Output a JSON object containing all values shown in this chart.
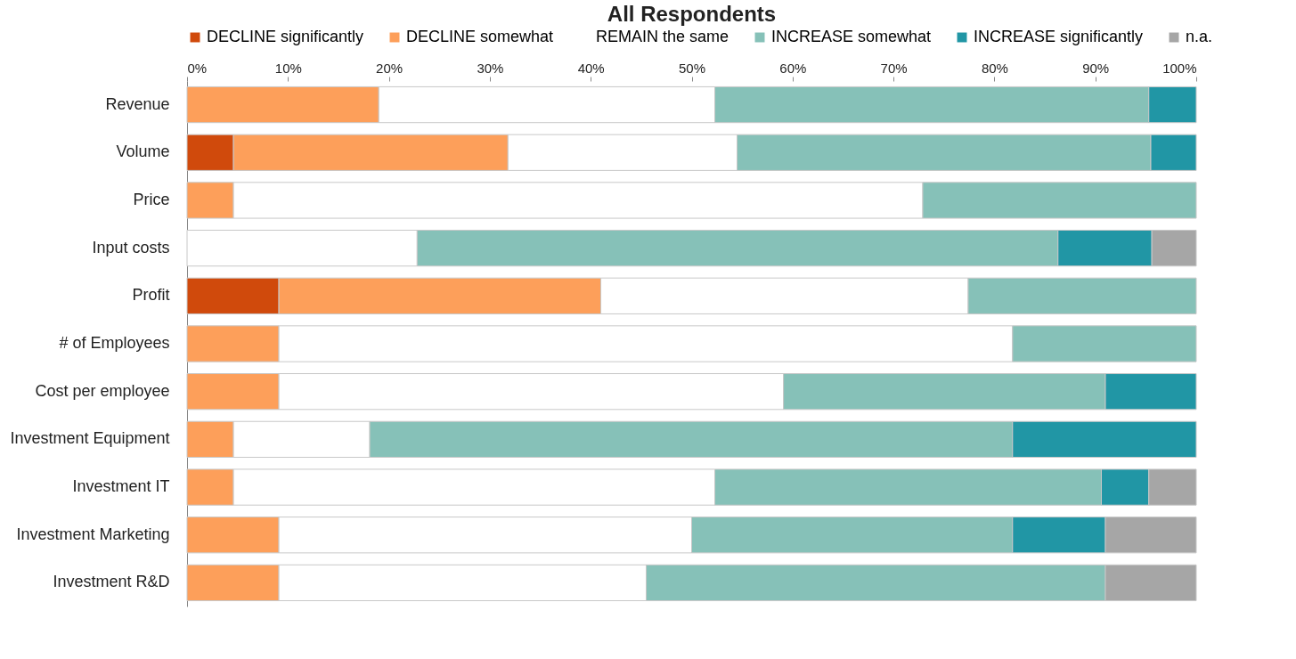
{
  "chart_data": {
    "type": "bar",
    "orientation": "horizontal",
    "stacked": true,
    "title": "All Respondents",
    "legend": "top",
    "categories": [
      "Revenue",
      "Volume",
      "Price",
      "Input costs",
      "Profit",
      "# of Employees",
      "Cost per employee",
      "Investment Equipment",
      "Investment IT",
      "Investment Marketing",
      "Investment R&D"
    ],
    "series": [
      {
        "name": "DECLINE significantly",
        "color": "#d04a0c",
        "values": [
          null,
          4.6,
          null,
          null,
          9.1,
          null,
          null,
          null,
          null,
          null,
          null
        ]
      },
      {
        "name": "DECLINE somewhat",
        "color": "#fd9f5a",
        "values": [
          19.0,
          27.2,
          4.6,
          null,
          31.9,
          9.1,
          9.1,
          4.6,
          4.6,
          9.1,
          9.1
        ]
      },
      {
        "name": "REMAIN the same",
        "color": "#ffffff",
        "values": [
          33.3,
          22.7,
          68.3,
          22.8,
          36.4,
          72.7,
          50.0,
          13.5,
          47.7,
          40.9,
          36.4
        ]
      },
      {
        "name": "INCREASE somewhat",
        "color": "#86c1b8",
        "values": [
          43.0,
          41.0,
          27.1,
          63.5,
          22.6,
          18.2,
          31.9,
          63.7,
          38.3,
          31.8,
          45.5
        ]
      },
      {
        "name": "INCREASE significantly",
        "color": "#2196a5",
        "values": [
          4.7,
          4.5,
          null,
          9.3,
          null,
          null,
          9.0,
          18.2,
          4.7,
          9.2,
          null
        ]
      },
      {
        "name": "n.a.",
        "color": "#a6a6a6",
        "values": [
          null,
          null,
          null,
          4.4,
          null,
          null,
          null,
          null,
          4.7,
          9.0,
          9.0
        ]
      }
    ],
    "xlim": [
      0,
      100
    ],
    "xticks": [
      {
        "value": 0,
        "label": "0%"
      },
      {
        "value": 10,
        "label": "10%"
      },
      {
        "value": 20,
        "label": "20%"
      },
      {
        "value": 30,
        "label": "30%"
      },
      {
        "value": 40,
        "label": "40%"
      },
      {
        "value": 50,
        "label": "50%"
      },
      {
        "value": 60,
        "label": "60%"
      },
      {
        "value": 70,
        "label": "70%"
      },
      {
        "value": 80,
        "label": "80%"
      },
      {
        "value": 90,
        "label": "90%"
      },
      {
        "value": 100,
        "label": "100%"
      }
    ]
  }
}
